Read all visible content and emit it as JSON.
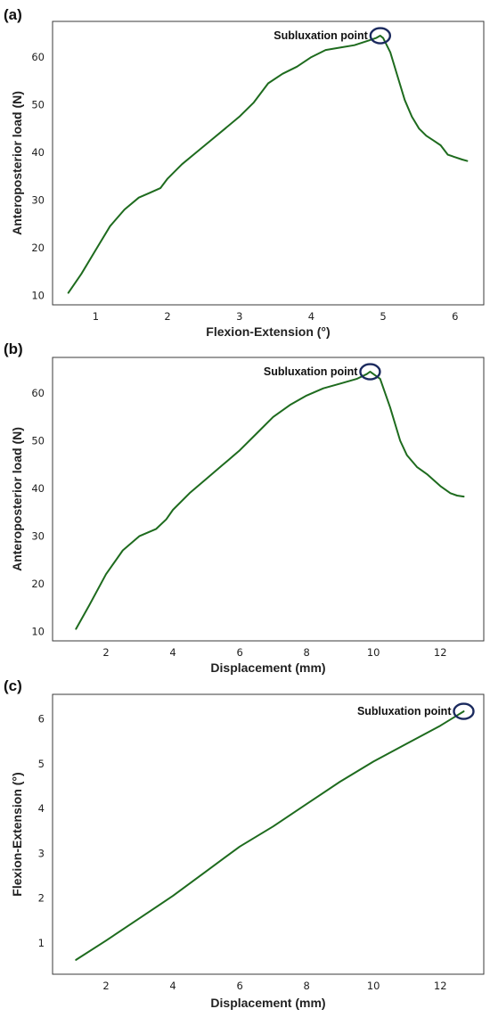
{
  "chart_data": [
    {
      "id": "a",
      "panel_label": "(a)",
      "type": "line",
      "xlabel": "Flexion-Extension (°)",
      "ylabel": "Anteroposterior load (N)",
      "xlim": [
        0.4,
        6.4
      ],
      "ylim": [
        8,
        67.5
      ],
      "xticks": [
        1,
        2,
        3,
        4,
        5,
        6
      ],
      "yticks": [
        10,
        20,
        30,
        40,
        50,
        60
      ],
      "grid": false,
      "annotation": {
        "text": "Subluxation point",
        "x": 4.96,
        "y": 64.5
      },
      "series": [
        {
          "x": [
            0.62,
            0.8,
            1.0,
            1.2,
            1.4,
            1.6,
            1.75,
            1.9,
            2.0,
            2.2,
            2.4,
            2.6,
            2.8,
            3.0,
            3.2,
            3.4,
            3.6,
            3.8,
            4.0,
            4.2,
            4.4,
            4.6,
            4.8,
            4.9,
            4.96,
            5.0,
            5.1,
            5.2,
            5.3,
            5.4,
            5.5,
            5.6,
            5.7,
            5.8,
            5.9,
            6.0,
            6.1,
            6.17
          ],
          "y": [
            10.5,
            14.5,
            19.5,
            24.5,
            28.0,
            30.5,
            31.5,
            32.5,
            34.5,
            37.5,
            40.0,
            42.5,
            45.0,
            47.5,
            50.5,
            54.5,
            56.5,
            58.0,
            60.0,
            61.5,
            62.0,
            62.5,
            63.5,
            64.0,
            64.5,
            64.0,
            61.0,
            56.0,
            51.0,
            47.5,
            45.0,
            43.5,
            42.5,
            41.5,
            39.5,
            39.0,
            38.5,
            38.2
          ]
        }
      ]
    },
    {
      "id": "b",
      "panel_label": "(b)",
      "type": "line",
      "xlabel": "Displacement (mm)",
      "ylabel": "Anteroposterior load (N)",
      "xlim": [
        0.4,
        13.3
      ],
      "ylim": [
        8,
        67.5
      ],
      "xticks": [
        2,
        4,
        6,
        8,
        10,
        12
      ],
      "yticks": [
        10,
        20,
        30,
        40,
        50,
        60
      ],
      "grid": false,
      "annotation": {
        "text": "Subluxation point",
        "x": 9.9,
        "y": 64.5
      },
      "series": [
        {
          "x": [
            1.1,
            1.5,
            2.0,
            2.5,
            3.0,
            3.5,
            3.8,
            4.0,
            4.5,
            5.0,
            5.5,
            6.0,
            6.5,
            7.0,
            7.5,
            8.0,
            8.5,
            9.0,
            9.5,
            9.8,
            9.9,
            10.0,
            10.2,
            10.5,
            10.8,
            11.0,
            11.3,
            11.6,
            12.0,
            12.3,
            12.5,
            12.7
          ],
          "y": [
            10.5,
            15.5,
            22.0,
            27.0,
            30.0,
            31.5,
            33.5,
            35.5,
            39.0,
            42.0,
            45.0,
            48.0,
            51.5,
            55.0,
            57.5,
            59.5,
            61.0,
            62.0,
            63.0,
            64.0,
            64.5,
            64.0,
            63.0,
            57.0,
            50.0,
            47.0,
            44.5,
            43.0,
            40.5,
            39.0,
            38.5,
            38.3
          ]
        }
      ]
    },
    {
      "id": "c",
      "panel_label": "(c)",
      "type": "line",
      "xlabel": "Displacement (mm)",
      "ylabel": "Flexion-Extension (°)",
      "xlim": [
        0.4,
        13.3
      ],
      "ylim": [
        0.3,
        6.55
      ],
      "xticks": [
        2,
        4,
        6,
        8,
        10,
        12
      ],
      "yticks": [
        1,
        2,
        3,
        4,
        5,
        6
      ],
      "grid": false,
      "annotation": {
        "text": "Subluxation point",
        "x": 12.7,
        "y": 6.17
      },
      "series": [
        {
          "x": [
            1.1,
            2.0,
            3.0,
            4.0,
            5.0,
            6.0,
            7.0,
            8.0,
            9.0,
            10.0,
            11.0,
            12.0,
            12.7
          ],
          "y": [
            0.62,
            1.05,
            1.55,
            2.05,
            2.6,
            3.15,
            3.6,
            4.1,
            4.6,
            5.05,
            5.45,
            5.85,
            6.17
          ]
        }
      ]
    }
  ]
}
